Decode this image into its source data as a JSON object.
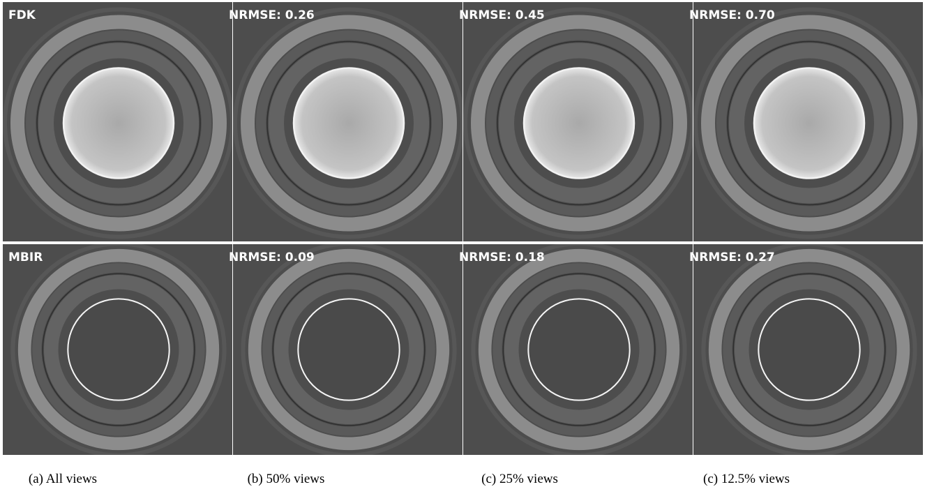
{
  "rows": [
    {
      "method": "FDK",
      "scores": [
        "NRMSE: 0.26",
        "NRMSE: 0.45",
        "NRMSE: 0.70"
      ]
    },
    {
      "method": "MBIR",
      "scores": [
        "NRMSE: 0.09",
        "NRMSE: 0.18",
        "NRMSE: 0.27"
      ]
    }
  ],
  "captions": [
    "(a) All views",
    "(b) 50% views",
    "(c) 25% views",
    "(c) 12.5% views"
  ]
}
